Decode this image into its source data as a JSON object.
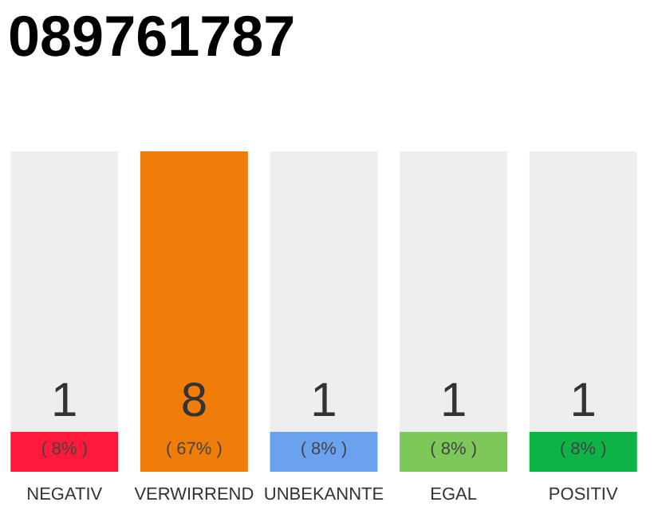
{
  "chart_data": {
    "type": "bar",
    "title": "089761787",
    "categories": [
      "NEGATIV",
      "VERWIRREND",
      "UNBEKANNTE",
      "EGAL",
      "POSITIV"
    ],
    "stacked": true,
    "ylim": [
      0,
      8
    ],
    "tick_labels": "x",
    "grid": false,
    "series": [
      {
        "colors": [
          "#ff1a3c",
          "#f07d0a",
          "#6aa2ef",
          "#7ec85a",
          "#0db445"
        ],
        "values": [
          1,
          8,
          1,
          1,
          1
        ],
        "value_labels": [
          "1",
          "8",
          "1",
          "1",
          "1"
        ]
      },
      {
        "color": "#eeeeee",
        "values": [
          7,
          0,
          7,
          7,
          7
        ]
      }
    ],
    "annotations": [
      "( 8% )",
      "( 67% )",
      "( 8% )",
      "( 8% )",
      "( 8% )"
    ]
  }
}
